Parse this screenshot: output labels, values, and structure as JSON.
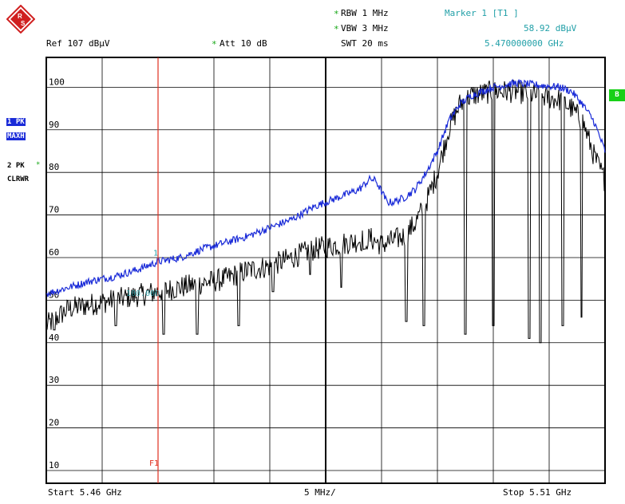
{
  "header": {
    "rbw": "RBW 1 MHz",
    "vbw": "VBW 3 MHz",
    "swt": "SWT 20 ms",
    "ref": "Ref  107 dBµV",
    "att": "Att  10 dB",
    "marker_title": "Marker 1 [T1 ]",
    "marker_level": "58.92 dBµV",
    "marker_freq": "5.470000000 GHz",
    "star": "*"
  },
  "side_labels": {
    "trace1_line1": "1 PK",
    "trace1_line2": "MAXH",
    "trace2_line1": "2 PK",
    "trace2_line2": "CLRWR",
    "side_tag": "B"
  },
  "footer": {
    "start": "Start 5.46 GHz",
    "div": "5 MHz/",
    "stop": "Stop 5.51 GHz"
  },
  "colors": {
    "maxhold": "#1a2bd8",
    "clearwrite": "#000000",
    "marker_line": "#e03020",
    "grid": "#000000",
    "accent_star": "#18a818",
    "teal_text": "#22a0a8"
  },
  "chart_data": {
    "type": "line",
    "xlim": [
      5.46,
      5.51
    ],
    "x_unit": "GHz",
    "ylim": [
      7,
      107
    ],
    "y_unit": "dBµV",
    "grid": true,
    "yticks": [
      10,
      20,
      30,
      40,
      50,
      60,
      70,
      80,
      90,
      100
    ],
    "ytick_labels": [
      "10",
      "20",
      "30",
      "40",
      "50",
      "60",
      "70",
      "80",
      "90",
      "100"
    ],
    "marker": {
      "label": "1",
      "x": 5.47,
      "y": 58.92
    },
    "vertical_line": {
      "label": "F1",
      "x": 5.47
    },
    "limit_annotation": "100.000",
    "series": [
      {
        "id": "maxhold",
        "x": [
          5.46,
          5.462,
          5.464,
          5.466,
          5.468,
          5.47,
          5.472,
          5.474,
          5.476,
          5.478,
          5.48,
          5.482,
          5.484,
          5.486,
          5.488,
          5.489,
          5.4895,
          5.49,
          5.4905,
          5.491,
          5.492,
          5.493,
          5.494,
          5.495,
          5.496,
          5.497,
          5.498,
          5.5,
          5.502,
          5.504,
          5.506,
          5.507,
          5.508,
          5.509,
          5.51
        ],
        "y": [
          51.5,
          53,
          54.5,
          55.5,
          57,
          59,
          60,
          62,
          63.5,
          65,
          67,
          69,
          72,
          74,
          76,
          78.5,
          78,
          75.5,
          73,
          73,
          74,
          76,
          80,
          85,
          92,
          96,
          98,
          100,
          101,
          100.5,
          100,
          99,
          96,
          92,
          85
        ]
      },
      {
        "id": "clearwrite",
        "x": [
          5.46,
          5.462,
          5.464,
          5.466,
          5.468,
          5.47,
          5.472,
          5.474,
          5.476,
          5.478,
          5.48,
          5.482,
          5.484,
          5.486,
          5.488,
          5.489,
          5.49,
          5.491,
          5.492,
          5.493,
          5.494,
          5.495,
          5.496,
          5.497,
          5.498,
          5.5,
          5.502,
          5.504,
          5.506,
          5.507,
          5.508,
          5.509,
          5.51
        ],
        "y": [
          44,
          48,
          49,
          50,
          51,
          52,
          53,
          54,
          55,
          57,
          58,
          60,
          62,
          63,
          64,
          64.5,
          63,
          64,
          65,
          68,
          73,
          80,
          90,
          96,
          98,
          99,
          99,
          98,
          97,
          95,
          92,
          84,
          78
        ],
        "dips_x": [
          5.4607,
          5.4662,
          5.4705,
          5.4735,
          5.4772,
          5.4803,
          5.4836,
          5.4864,
          5.4885,
          5.4922,
          5.4938,
          5.4975,
          5.5,
          5.5032,
          5.5042,
          5.5062,
          5.5079,
          5.5104
        ],
        "dips_y": [
          43,
          44,
          42,
          42,
          44,
          52,
          56,
          53,
          62,
          45,
          44,
          42,
          44,
          41,
          40,
          44,
          46,
          45
        ]
      }
    ]
  }
}
